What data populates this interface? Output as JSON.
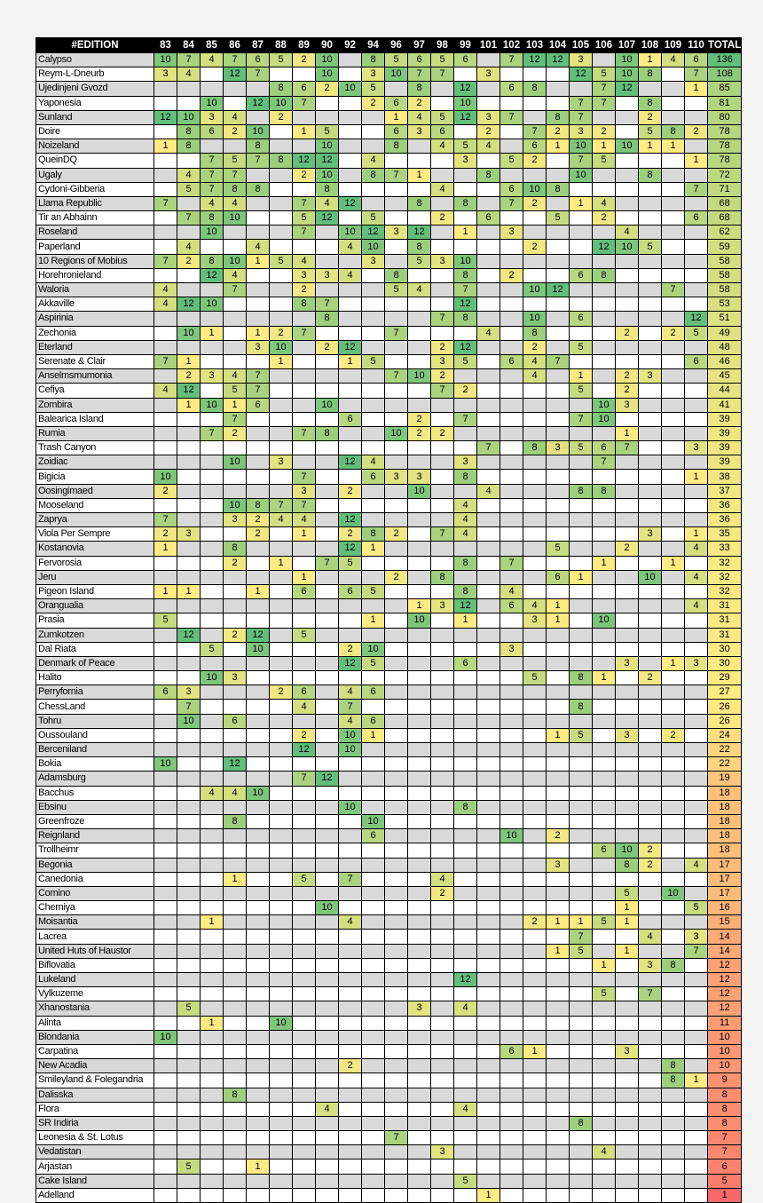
{
  "table": {
    "corner_label": "#EDITION",
    "total_label": "TOTAL",
    "editions": [
      "83",
      "84",
      "85",
      "86",
      "87",
      "88",
      "89",
      "90",
      "92",
      "94",
      "96",
      "97",
      "98",
      "99",
      "101",
      "102",
      "103",
      "104",
      "105",
      "106",
      "107",
      "108",
      "109",
      "110"
    ],
    "rows": [
      {
        "name": "Calypso",
        "scores": {
          "83": 10,
          "84": 7,
          "85": 4,
          "86": 7,
          "87": 6,
          "88": 5,
          "89": 2,
          "90": 10,
          "94": 8,
          "96": 5,
          "97": 6,
          "98": 5,
          "99": 6,
          "102": 7,
          "103": 12,
          "104": 12,
          "105": 3,
          "107": 10,
          "108": 1,
          "109": 4,
          "110": 6
        },
        "total": 136
      },
      {
        "name": "Reym-L-Dneurb",
        "scores": {
          "83": 3,
          "84": 4,
          "86": 12,
          "87": 7,
          "90": 10,
          "94": 3,
          "96": 10,
          "97": 7,
          "98": 7,
          "101": 3,
          "105": 12,
          "106": 5,
          "107": 10,
          "108": 8,
          "110": 7
        },
        "total": 108
      },
      {
        "name": "Ujedinjeni Gvozd",
        "scores": {
          "88": 8,
          "89": 6,
          "90": 2,
          "92": 10,
          "94": 5,
          "97": 8,
          "99": 12,
          "102": 6,
          "103": 8,
          "106": 7,
          "107": 12,
          "110": 1
        },
        "total": 85
      },
      {
        "name": "Yaponesia",
        "scores": {
          "85": 10,
          "87": 12,
          "88": 10,
          "89": 7,
          "94": 2,
          "96": 6,
          "97": 2,
          "99": 10,
          "105": 7,
          "106": 7,
          "108": 8
        },
        "total": 81
      },
      {
        "name": "Sunland",
        "scores": {
          "83": 12,
          "84": 10,
          "85": 3,
          "86": 4,
          "88": 2,
          "96": 1,
          "97": 4,
          "98": 5,
          "99": 12,
          "101": 3,
          "102": 7,
          "104": 8,
          "105": 7,
          "108": 2
        },
        "total": 80
      },
      {
        "name": "Doire",
        "scores": {
          "84": 8,
          "85": 6,
          "86": 2,
          "87": 10,
          "89": 1,
          "90": 5,
          "96": 6,
          "97": 3,
          "98": 6,
          "101": 2,
          "103": 7,
          "104": 2,
          "105": 3,
          "106": 2,
          "108": 5,
          "109": 8,
          "110": 2
        },
        "total": 78
      },
      {
        "name": "Noizeland",
        "scores": {
          "83": 1,
          "84": 8,
          "87": 8,
          "90": 10,
          "96": 8,
          "98": 4,
          "99": 5,
          "101": 4,
          "103": 6,
          "104": 1,
          "105": 10,
          "106": 1,
          "107": 10,
          "108": 1,
          "109": 1
        },
        "total": 78
      },
      {
        "name": "QueinDQ",
        "scores": {
          "85": 7,
          "86": 5,
          "87": 7,
          "88": 8,
          "89": 12,
          "90": 12,
          "94": 4,
          "99": 3,
          "102": 5,
          "103": 2,
          "105": 7,
          "106": 5,
          "110": 1
        },
        "total": 78
      },
      {
        "name": "Ugaly",
        "scores": {
          "84": 4,
          "85": 7,
          "86": 7,
          "89": 2,
          "90": 10,
          "94": 8,
          "96": 7,
          "97": 1,
          "101": 8,
          "105": 10,
          "108": 8
        },
        "total": 72
      },
      {
        "name": "Cydoni-Gibberia",
        "scores": {
          "84": 5,
          "85": 7,
          "86": 8,
          "87": 8,
          "90": 8,
          "98": 4,
          "102": 6,
          "103": 10,
          "104": 8,
          "110": 7
        },
        "total": 71
      },
      {
        "name": "Llama Republic",
        "scores": {
          "83": 7,
          "85": 4,
          "86": 4,
          "89": 7,
          "90": 4,
          "92": 12,
          "97": 8,
          "99": 8,
          "102": 7,
          "103": 2,
          "105": 1,
          "106": 4
        },
        "total": 68
      },
      {
        "name": "Tir an Abhainn",
        "scores": {
          "84": 7,
          "85": 8,
          "86": 10,
          "89": 5,
          "90": 12,
          "94": 5,
          "98": 2,
          "101": 6,
          "104": 5,
          "106": 2,
          "110": 6
        },
        "total": 68
      },
      {
        "name": "Roseland",
        "scores": {
          "85": 10,
          "89": 7,
          "92": 10,
          "94": 12,
          "96": 3,
          "97": 12,
          "99": 1,
          "102": 3,
          "107": 4
        },
        "total": 62
      },
      {
        "name": "Paperland",
        "scores": {
          "84": 4,
          "87": 4,
          "92": 4,
          "94": 10,
          "97": 8,
          "103": 2,
          "106": 12,
          "107": 10,
          "108": 5
        },
        "total": 59
      },
      {
        "name": "10 Regions of Mobius",
        "scores": {
          "83": 7,
          "84": 2,
          "85": 8,
          "86": 10,
          "87": 1,
          "88": 5,
          "89": 4,
          "94": 3,
          "97": 5,
          "98": 3,
          "99": 10
        },
        "total": 58
      },
      {
        "name": "Horehronieland",
        "scores": {
          "85": 12,
          "86": 4,
          "89": 3,
          "90": 3,
          "92": 4,
          "96": 8,
          "99": 8,
          "102": 2,
          "105": 6,
          "106": 8
        },
        "total": 58
      },
      {
        "name": "Waloria",
        "scores": {
          "83": 4,
          "86": 7,
          "89": 2,
          "96": 5,
          "97": 4,
          "99": 7,
          "103": 10,
          "104": 12,
          "109": 7
        },
        "total": 58
      },
      {
        "name": "Akkaville",
        "scores": {
          "83": 4,
          "84": 12,
          "85": 10,
          "89": 8,
          "90": 7,
          "99": 12
        },
        "total": 53
      },
      {
        "name": "Aspirinia",
        "scores": {
          "90": 8,
          "98": 7,
          "99": 8,
          "103": 10,
          "105": 6,
          "110": 12
        },
        "total": 51
      },
      {
        "name": "Zechonia",
        "scores": {
          "84": 10,
          "85": 1,
          "87": 1,
          "88": 2,
          "89": 7,
          "96": 7,
          "101": 4,
          "103": 8,
          "107": 2,
          "109": 2,
          "110": 5
        },
        "total": 49
      },
      {
        "name": "Eterland",
        "scores": {
          "87": 3,
          "88": 10,
          "90": 2,
          "92": 12,
          "98": 2,
          "99": 12,
          "103": 2,
          "105": 5
        },
        "total": 48
      },
      {
        "name": "Serenate & Clair",
        "scores": {
          "83": 7,
          "84": 1,
          "88": 1,
          "92": 1,
          "94": 5,
          "98": 3,
          "99": 5,
          "102": 6,
          "103": 4,
          "104": 7,
          "110": 6
        },
        "total": 46
      },
      {
        "name": "Anselmsmumonia",
        "scores": {
          "84": 2,
          "85": 3,
          "86": 4,
          "87": 7,
          "96": 7,
          "97": 10,
          "98": 2,
          "103": 4,
          "105": 1,
          "107": 2,
          "108": 3
        },
        "total": 45
      },
      {
        "name": "Cefiya",
        "scores": {
          "83": 4,
          "84": 12,
          "86": 5,
          "87": 7,
          "98": 7,
          "99": 2,
          "105": 5,
          "107": 2
        },
        "total": 44
      },
      {
        "name": "Zombira",
        "scores": {
          "84": 1,
          "85": 10,
          "86": 1,
          "87": 6,
          "90": 10,
          "106": 10,
          "107": 3
        },
        "total": 41
      },
      {
        "name": "Balearica Island",
        "scores": {
          "86": 7,
          "92": 6,
          "97": 2,
          "99": 7,
          "105": 7,
          "106": 10
        },
        "total": 39
      },
      {
        "name": "Rumia",
        "scores": {
          "85": 7,
          "86": 2,
          "89": 7,
          "90": 8,
          "96": 10,
          "97": 2,
          "98": 2,
          "107": 1
        },
        "total": 39
      },
      {
        "name": "Trash Canyon",
        "scores": {
          "101": 7,
          "103": 8,
          "104": 3,
          "105": 5,
          "106": 6,
          "107": 7,
          "110": 3
        },
        "total": 39
      },
      {
        "name": "Zoidiac",
        "scores": {
          "86": 10,
          "88": 3,
          "92": 12,
          "94": 4,
          "99": 3,
          "106": 7
        },
        "total": 39
      },
      {
        "name": "Bigicia",
        "scores": {
          "83": 10,
          "89": 7,
          "94": 6,
          "96": 3,
          "97": 3,
          "99": 8,
          "110": 1
        },
        "total": 38
      },
      {
        "name": "Oosingimaed",
        "scores": {
          "83": 2,
          "89": 3,
          "92": 2,
          "97": 10,
          "101": 4,
          "105": 8,
          "106": 8
        },
        "total": 37
      },
      {
        "name": "Mooseland",
        "scores": {
          "86": 10,
          "87": 8,
          "88": 7,
          "89": 7,
          "99": 4
        },
        "total": 36
      },
      {
        "name": "Zaprya",
        "scores": {
          "83": 7,
          "86": 3,
          "87": 2,
          "88": 4,
          "89": 4,
          "92": 12,
          "99": 4
        },
        "total": 36
      },
      {
        "name": "Viola Per Sempre",
        "scores": {
          "83": 2,
          "84": 3,
          "87": 2,
          "89": 1,
          "92": 2,
          "94": 8,
          "96": 2,
          "98": 7,
          "99": 4,
          "108": 3,
          "110": 1
        },
        "total": 35
      },
      {
        "name": "Kostanovia",
        "scores": {
          "83": 1,
          "86": 8,
          "92": 12,
          "94": 1,
          "104": 5,
          "107": 2,
          "110": 4
        },
        "total": 33
      },
      {
        "name": "Fervorosia",
        "scores": {
          "86": 2,
          "88": 1,
          "90": 7,
          "92": 5,
          "99": 8,
          "102": 7,
          "106": 1,
          "109": 1
        },
        "total": 32
      },
      {
        "name": "Jeru",
        "scores": {
          "89": 1,
          "96": 2,
          "98": 8,
          "104": 6,
          "105": 1,
          "108": 10,
          "110": 4
        },
        "total": 32
      },
      {
        "name": "Pigeon Island",
        "scores": {
          "83": 1,
          "84": 1,
          "87": 1,
          "89": 6,
          "92": 6,
          "94": 5,
          "99": 8,
          "102": 4
        },
        "total": 32
      },
      {
        "name": "Orangualia",
        "scores": {
          "97": 1,
          "98": 3,
          "99": 12,
          "102": 6,
          "103": 4,
          "104": 1,
          "110": 4
        },
        "total": 31
      },
      {
        "name": "Prasia",
        "scores": {
          "83": 5,
          "94": 1,
          "97": 10,
          "99": 1,
          "103": 3,
          "104": 1,
          "106": 10
        },
        "total": 31
      },
      {
        "name": "Zumkotzen",
        "scores": {
          "84": 12,
          "86": 2,
          "87": 12,
          "89": 5
        },
        "total": 31
      },
      {
        "name": "Dal Riata",
        "scores": {
          "85": 5,
          "87": 10,
          "92": 2,
          "94": 10,
          "102": 3
        },
        "total": 30
      },
      {
        "name": "Denmark of Peace",
        "scores": {
          "92": 12,
          "94": 5,
          "99": 6,
          "107": 3,
          "109": 1,
          "110": 3
        },
        "total": 30
      },
      {
        "name": "Halito",
        "scores": {
          "85": 10,
          "86": 3,
          "103": 5,
          "105": 8,
          "106": 1,
          "108": 2
        },
        "total": 29
      },
      {
        "name": "Perryfornia",
        "scores": {
          "83": 6,
          "84": 3,
          "88": 2,
          "89": 6,
          "92": 4,
          "94": 6
        },
        "total": 27
      },
      {
        "name": "ChessLand",
        "scores": {
          "84": 7,
          "89": 4,
          "92": 7,
          "105": 8
        },
        "total": 26
      },
      {
        "name": "Tohru",
        "scores": {
          "84": 10,
          "86": 6,
          "92": 4,
          "94": 6
        },
        "total": 26
      },
      {
        "name": "Oussouland",
        "scores": {
          "89": 2,
          "92": 10,
          "94": 1,
          "104": 1,
          "105": 5,
          "107": 3,
          "109": 2
        },
        "total": 24
      },
      {
        "name": "Berceniland",
        "scores": {
          "89": 12,
          "92": 10
        },
        "total": 22
      },
      {
        "name": "Bokia",
        "scores": {
          "83": 10,
          "86": 12
        },
        "total": 22
      },
      {
        "name": "Adamsburg",
        "scores": {
          "89": 7,
          "90": 12
        },
        "total": 19
      },
      {
        "name": "Bacchus",
        "scores": {
          "85": 4,
          "86": 4,
          "87": 10
        },
        "total": 18
      },
      {
        "name": "Ebsinu",
        "scores": {
          "92": 10,
          "99": 8
        },
        "total": 18
      },
      {
        "name": "Greenfroze",
        "scores": {
          "86": 8,
          "94": 10
        },
        "total": 18
      },
      {
        "name": "Reignland",
        "scores": {
          "94": 6,
          "102": 10,
          "104": 2
        },
        "total": 18
      },
      {
        "name": "Trollheimr",
        "scores": {
          "106": 6,
          "107": 10,
          "108": 2
        },
        "total": 18
      },
      {
        "name": "Begonia",
        "scores": {
          "104": 3,
          "107": 8,
          "108": 2,
          "110": 4
        },
        "total": 17
      },
      {
        "name": "Canedonia",
        "scores": {
          "86": 1,
          "89": 5,
          "92": 7,
          "98": 4
        },
        "total": 17
      },
      {
        "name": "Comino",
        "scores": {
          "98": 2,
          "107": 5,
          "109": 10
        },
        "total": 17
      },
      {
        "name": "Cherniya",
        "scores": {
          "90": 10,
          "107": 1,
          "110": 5
        },
        "total": 16
      },
      {
        "name": "Moisantia",
        "scores": {
          "85": 1,
          "92": 4,
          "103": 2,
          "104": 1,
          "105": 1,
          "106": 5,
          "107": 1
        },
        "total": 15
      },
      {
        "name": "Lacrea",
        "scores": {
          "105": 7,
          "108": 4,
          "110": 3
        },
        "total": 14
      },
      {
        "name": "United Huts of Haustor",
        "scores": {
          "104": 1,
          "105": 5,
          "107": 1,
          "110": 7
        },
        "total": 14
      },
      {
        "name": "Biflovatia",
        "scores": {
          "106": 1,
          "108": 3,
          "109": 8
        },
        "total": 12
      },
      {
        "name": "Lukeland",
        "scores": {
          "99": 12
        },
        "total": 12
      },
      {
        "name": "Vylkuzeme",
        "scores": {
          "106": 5,
          "108": 7
        },
        "total": 12
      },
      {
        "name": "Xhanostania",
        "scores": {
          "84": 5,
          "97": 3,
          "99": 4
        },
        "total": 12
      },
      {
        "name": "Alinta",
        "scores": {
          "85": 1,
          "88": 10
        },
        "total": 11
      },
      {
        "name": "Blondania",
        "scores": {
          "83": 10
        },
        "total": 10
      },
      {
        "name": "Carpatina",
        "scores": {
          "102": 6,
          "103": 1,
          "107": 3
        },
        "total": 10
      },
      {
        "name": "New Acadia",
        "scores": {
          "92": 2,
          "109": 8
        },
        "total": 10
      },
      {
        "name": "Smileyland & Folegandria",
        "scores": {
          "109": 8,
          "110": 1
        },
        "total": 9
      },
      {
        "name": "Dalisska",
        "scores": {
          "86": 8
        },
        "total": 8
      },
      {
        "name": "Flora",
        "scores": {
          "90": 4,
          "99": 4
        },
        "total": 8
      },
      {
        "name": "SR Indiria",
        "scores": {
          "105": 8
        },
        "total": 8
      },
      {
        "name": "Leonesia & St. Lotus",
        "scores": {
          "96": 7
        },
        "total": 7
      },
      {
        "name": "Vedatistan",
        "scores": {
          "98": 3,
          "106": 4
        },
        "total": 7
      },
      {
        "name": "Arjastan",
        "scores": {
          "84": 5,
          "87": 1
        },
        "total": 6
      },
      {
        "name": "Cake Island",
        "scores": {
          "99": 5
        },
        "total": 5
      },
      {
        "name": "Adelland",
        "scores": {
          "101": 1
        },
        "total": 1
      }
    ]
  },
  "colors": {
    "score_min": 1,
    "score_max": 12,
    "score_min_color": "#FFEB84",
    "score_max_color": "#63BE7B",
    "total_min": 1,
    "total_mid": 26.5,
    "total_max": 136,
    "total_min_color": "#F8696B",
    "total_mid_color": "#FFEB84",
    "total_max_color": "#63BE7B",
    "stripe_odd": "#D9D9D9",
    "stripe_even": "#FFFFFF",
    "header_bg": "#000000",
    "header_fg": "#FFFFFF",
    "page_bg": "#F3F3F1"
  }
}
